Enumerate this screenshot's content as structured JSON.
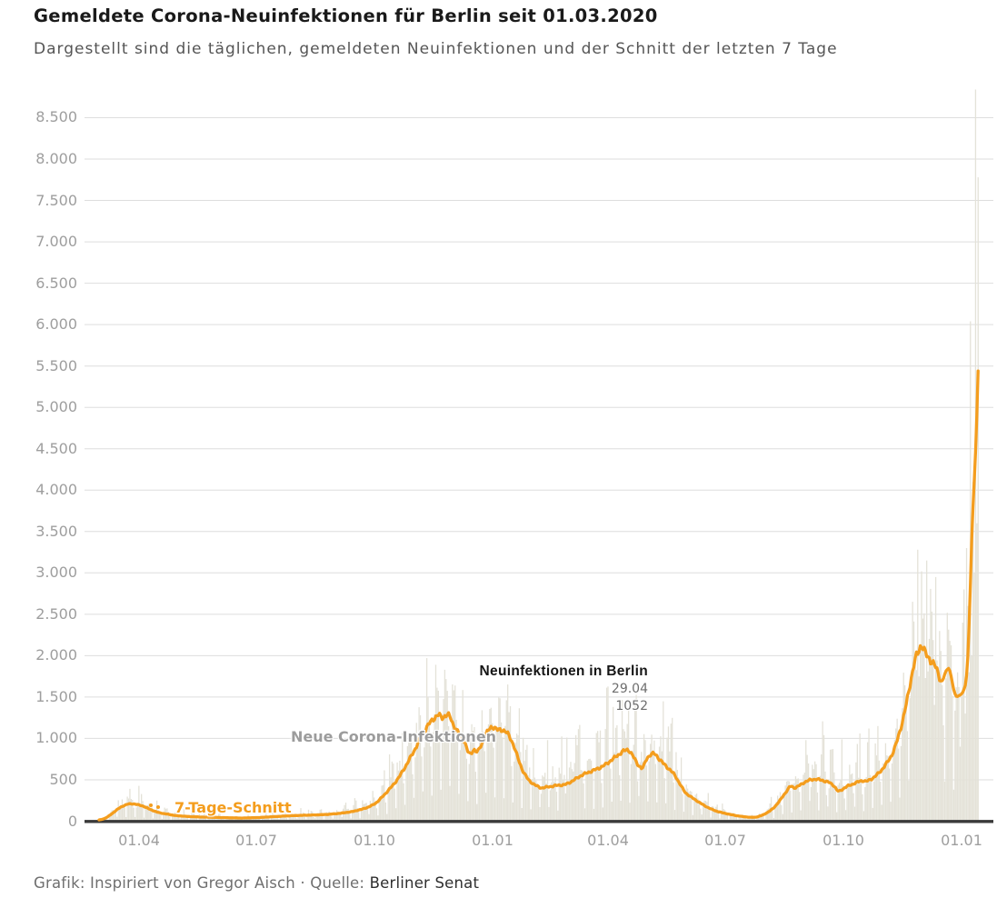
{
  "header": {
    "title": "Gemeldete Corona-Neuinfektionen für Berlin seit 01.03.2020",
    "subtitle": "Dargestellt sind die täglichen, gemeldeten Neuinfektionen und der Schnitt der letzten 7 Tage"
  },
  "footer": {
    "prefix": "Grafik:",
    "credit": "Inspiriert von Gregor Aisch · Quelle:",
    "source": "Berliner Senat"
  },
  "annotations": {
    "series_label": "Neue Corona-Infektionen",
    "avg_label": "7-Tage-Schnitt",
    "tooltip": {
      "title": "Neuinfektionen in Berlin",
      "date": "29.04",
      "value": "1052"
    }
  },
  "axes": {
    "y_ticks": [
      {
        "value": 8500,
        "label": "8.500"
      },
      {
        "value": 8000,
        "label": "8.000"
      },
      {
        "value": 7500,
        "label": "7.500"
      },
      {
        "value": 7000,
        "label": "7.000"
      },
      {
        "value": 6500,
        "label": "6.500"
      },
      {
        "value": 6000,
        "label": "6.000"
      },
      {
        "value": 5500,
        "label": "5.500"
      },
      {
        "value": 5000,
        "label": "5.000"
      },
      {
        "value": 4500,
        "label": "4.500"
      },
      {
        "value": 4000,
        "label": "4.000"
      },
      {
        "value": 3500,
        "label": "3.500"
      },
      {
        "value": 3000,
        "label": "3.000"
      },
      {
        "value": 2500,
        "label": "2.500"
      },
      {
        "value": 2000,
        "label": "2.000"
      },
      {
        "value": 1500,
        "label": "1.500"
      },
      {
        "value": 1000,
        "label": "1.000"
      },
      {
        "value": 500,
        "label": "500"
      },
      {
        "value": 0,
        "label": "0"
      }
    ],
    "x_ticks": [
      {
        "day": 31,
        "label": "01.04"
      },
      {
        "day": 122,
        "label": "01.07"
      },
      {
        "day": 214,
        "label": "01.10"
      },
      {
        "day": 306,
        "label": "01.01"
      },
      {
        "day": 396,
        "label": "01.04"
      },
      {
        "day": 487,
        "label": "01.07"
      },
      {
        "day": 579,
        "label": "01.10"
      },
      {
        "day": 671,
        "label": "01.01"
      }
    ]
  },
  "colors": {
    "bar": "#e4e2d8",
    "line": "#f49d1d",
    "grid": "#dedede",
    "axis": "#3a3a3a"
  },
  "chart_data": {
    "type": "bar+line",
    "title": "Gemeldete Corona-Neuinfektionen für Berlin seit 01.03.2020",
    "x_start": "01.03.2020",
    "x_unit": "day",
    "y_domain": [
      0,
      8500
    ],
    "last_day": 684,
    "series": [
      {
        "name": "Neue Corona-Infektionen",
        "type": "bar",
        "derivation": "avg_keypoints interpolated × weekday pattern × jitter, with overrides"
      },
      {
        "name": "7-Tage-Schnitt",
        "type": "line",
        "keypoints": [
          [
            0,
            15
          ],
          [
            3,
            25
          ],
          [
            6,
            45
          ],
          [
            10,
            90
          ],
          [
            14,
            140
          ],
          [
            18,
            180
          ],
          [
            22,
            205
          ],
          [
            26,
            212
          ],
          [
            30,
            200
          ],
          [
            34,
            185
          ],
          [
            38,
            155
          ],
          [
            42,
            128
          ],
          [
            46,
            105
          ],
          [
            53,
            85
          ],
          [
            60,
            67
          ],
          [
            70,
            56
          ],
          [
            80,
            50
          ],
          [
            90,
            46
          ],
          [
            100,
            42
          ],
          [
            111,
            38
          ],
          [
            122,
            43
          ],
          [
            133,
            52
          ],
          [
            144,
            62
          ],
          [
            155,
            70
          ],
          [
            166,
            74
          ],
          [
            178,
            82
          ],
          [
            188,
            96
          ],
          [
            197,
            116
          ],
          [
            204,
            142
          ],
          [
            210,
            172
          ],
          [
            216,
            225
          ],
          [
            222,
            320
          ],
          [
            229,
            440
          ],
          [
            234,
            545
          ],
          [
            240,
            705
          ],
          [
            245,
            845
          ],
          [
            250,
            1005
          ],
          [
            255,
            1140
          ],
          [
            260,
            1235
          ],
          [
            264,
            1292
          ],
          [
            267,
            1240
          ],
          [
            270,
            1292
          ],
          [
            273,
            1268
          ],
          [
            276,
            1150
          ],
          [
            280,
            1060
          ],
          [
            284,
            985
          ],
          [
            288,
            792
          ],
          [
            290,
            830
          ],
          [
            292,
            885
          ],
          [
            294,
            815
          ],
          [
            298,
            940
          ],
          [
            302,
            1080
          ],
          [
            306,
            1152
          ],
          [
            310,
            1098
          ],
          [
            314,
            1108
          ],
          [
            318,
            1058
          ],
          [
            322,
            945
          ],
          [
            326,
            755
          ],
          [
            330,
            598
          ],
          [
            334,
            498
          ],
          [
            339,
            438
          ],
          [
            344,
            400
          ],
          [
            350,
            416
          ],
          [
            356,
            432
          ],
          [
            363,
            442
          ],
          [
            369,
            492
          ],
          [
            375,
            552
          ],
          [
            381,
            592
          ],
          [
            387,
            628
          ],
          [
            393,
            672
          ],
          [
            399,
            742
          ],
          [
            404,
            802
          ],
          [
            408,
            848
          ],
          [
            412,
            868
          ],
          [
            415,
            798
          ],
          [
            419,
            688
          ],
          [
            423,
            625
          ],
          [
            426,
            762
          ],
          [
            430,
            815
          ],
          [
            433,
            812
          ],
          [
            436,
            748
          ],
          [
            440,
            682
          ],
          [
            444,
            625
          ],
          [
            448,
            558
          ],
          [
            452,
            448
          ],
          [
            456,
            345
          ],
          [
            461,
            288
          ],
          [
            466,
            238
          ],
          [
            471,
            188
          ],
          [
            476,
            148
          ],
          [
            481,
            118
          ],
          [
            487,
            95
          ],
          [
            492,
            78
          ],
          [
            497,
            64
          ],
          [
            502,
            54
          ],
          [
            507,
            46
          ],
          [
            512,
            50
          ],
          [
            516,
            72
          ],
          [
            521,
            112
          ],
          [
            525,
            162
          ],
          [
            529,
            232
          ],
          [
            532,
            302
          ],
          [
            536,
            382
          ],
          [
            538,
            432
          ],
          [
            541,
            398
          ],
          [
            544,
            422
          ],
          [
            549,
            472
          ],
          [
            553,
            498
          ],
          [
            557,
            508
          ],
          [
            562,
            498
          ],
          [
            566,
            478
          ],
          [
            569,
            462
          ],
          [
            572,
            428
          ],
          [
            575,
            352
          ],
          [
            578,
            382
          ],
          [
            582,
            422
          ],
          [
            586,
            445
          ],
          [
            590,
            472
          ],
          [
            594,
            492
          ],
          [
            597,
            478
          ],
          [
            600,
            502
          ],
          [
            604,
            542
          ],
          [
            608,
            602
          ],
          [
            613,
            702
          ],
          [
            617,
            802
          ],
          [
            620,
            922
          ],
          [
            623,
            1080
          ],
          [
            626,
            1260
          ],
          [
            629,
            1480
          ],
          [
            632,
            1740
          ],
          [
            635,
            1960
          ],
          [
            638,
            2060
          ],
          [
            640,
            2160
          ],
          [
            642,
            2060
          ],
          [
            644,
            1990
          ],
          [
            647,
            1950
          ],
          [
            650,
            1890
          ],
          [
            653,
            1780
          ],
          [
            655,
            1705
          ],
          [
            656,
            1660
          ],
          [
            658,
            1790
          ],
          [
            660,
            1840
          ],
          [
            662,
            1852
          ],
          [
            663,
            1750
          ],
          [
            664,
            1655
          ],
          [
            666,
            1522
          ],
          [
            668,
            1495
          ],
          [
            670,
            1540
          ],
          [
            671,
            1512
          ],
          [
            672,
            1560
          ],
          [
            673,
            1598
          ],
          [
            674,
            1625
          ],
          [
            675,
            1700
          ],
          [
            676,
            1950
          ],
          [
            677,
            2300
          ],
          [
            678,
            2900
          ],
          [
            679,
            3450
          ],
          [
            680,
            3880
          ],
          [
            681,
            4080
          ],
          [
            682,
            4400
          ],
          [
            683,
            4900
          ],
          [
            684,
            5440
          ]
        ]
      }
    ],
    "bar_weekday_pattern": [
      0.29,
      0.97,
      1.18,
      1.34,
      1.26,
      1.18,
      0.78
    ],
    "bar_spike": {
      "threshold": 0.78,
      "factor": 1.55,
      "max_avg": 750
    },
    "bar_overrides": {
      "255": 1970,
      "262": 1890,
      "269": 1830,
      "349": 980,
      "364": 1010,
      "371": 1040,
      "400": 1380,
      "407": 1465,
      "412": 1350,
      "424": 1052,
      "550": 980,
      "564": 1040,
      "578": 990,
      "592": 1060,
      "599": 1120,
      "606": 1150,
      "637": 3280,
      "644": 3150,
      "651": 2950,
      "670": 900,
      "671": 1500,
      "672": 2400,
      "673": 2800,
      "674": 1300,
      "675": 3300,
      "676": 2600,
      "677": 1800,
      "678": 6040,
      "679": 2000,
      "680": 4100,
      "681": 3000,
      "682": 8840,
      "683": 3600,
      "684": 7780
    }
  }
}
